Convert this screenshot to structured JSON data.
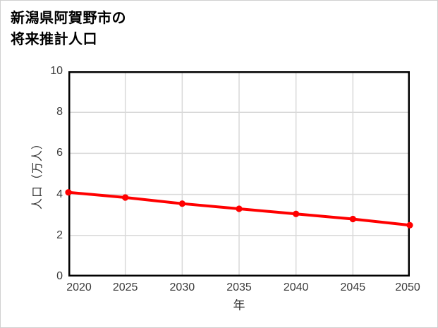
{
  "page": {
    "background": "#ffffff",
    "border_color": "#d0d0d0"
  },
  "chart_data": {
    "type": "line",
    "title": "新潟県阿賀野市の将来推計人口",
    "title_lines": [
      "新潟県阿賀野市の",
      "将来推計人口"
    ],
    "xlabel": "年",
    "ylabel": "人口（万人）",
    "x": [
      2020,
      2025,
      2030,
      2035,
      2040,
      2045,
      2050
    ],
    "series": [
      {
        "name": "将来推計人口",
        "values": [
          4.1,
          3.85,
          3.55,
          3.3,
          3.05,
          2.8,
          2.5
        ]
      }
    ],
    "xlim": [
      2020,
      2050
    ],
    "ylim": [
      0,
      10
    ],
    "x_ticks": [
      2020,
      2025,
      2030,
      2035,
      2040,
      2045,
      2050
    ],
    "y_ticks": [
      0,
      2,
      4,
      6,
      8,
      10
    ],
    "grid": true,
    "legend_position": "none",
    "colors": {
      "line": "#ff0000",
      "marker": "#ff0000",
      "gridline": "#d9d9d9",
      "axis_border": "#000000",
      "tick_label": "#3a3a3a",
      "title": "#000000"
    },
    "marker_style": "circle"
  }
}
